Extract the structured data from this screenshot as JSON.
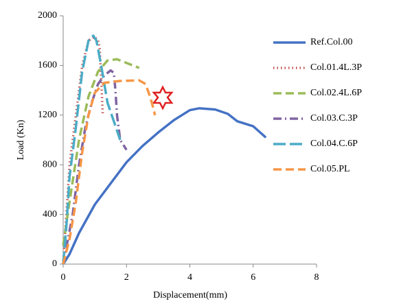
{
  "chart_data": {
    "type": "line",
    "xlabel": "Displacement(mm)",
    "ylabel": "Load (Kn)",
    "xlim": [
      0,
      8
    ],
    "xticks": [
      0,
      2,
      4,
      6,
      8
    ],
    "ylim": [
      0,
      2000
    ],
    "yticks": [
      0,
      400,
      800,
      1200,
      1600,
      2000
    ],
    "grid": false,
    "legend": "right",
    "series": [
      {
        "name": "Ref.Col.00",
        "color": "#4472c4",
        "dash": "solid",
        "x": [
          0,
          0.2,
          0.5,
          1,
          1.5,
          2,
          2.5,
          3,
          3.5,
          4,
          4.3,
          4.8,
          5.2,
          5.5,
          6,
          6.4
        ],
        "values": [
          0,
          80,
          250,
          480,
          650,
          820,
          950,
          1060,
          1160,
          1240,
          1255,
          1245,
          1210,
          1150,
          1110,
          1020
        ]
      },
      {
        "name": "Col.01.4L.3P",
        "color": "#c0504d",
        "dash": "dotted",
        "x": [
          0,
          0.1,
          0.2,
          0.4,
          0.6,
          0.8,
          1,
          1.1,
          1.15,
          1.2,
          1.25
        ],
        "values": [
          0,
          400,
          800,
          1200,
          1600,
          1800,
          1830,
          1800,
          1750,
          1500,
          1200
        ]
      },
      {
        "name": "Col.02.4L.6P",
        "color": "#9bbb59",
        "dash": "dashed",
        "x": [
          0,
          0.2,
          0.5,
          0.8,
          1.1,
          1.4,
          1.7,
          2,
          2.4
        ],
        "values": [
          150,
          500,
          1000,
          1350,
          1550,
          1640,
          1650,
          1620,
          1580
        ]
      },
      {
        "name": "Col.03.C.3P",
        "color": "#8064a2",
        "dash": "dashdot",
        "x": [
          0,
          0.3,
          0.5,
          0.7,
          0.9,
          1.1,
          1.3,
          1.5,
          1.6,
          1.65,
          1.7,
          1.8,
          2
        ],
        "values": [
          0,
          400,
          800,
          1100,
          1300,
          1450,
          1520,
          1560,
          1540,
          1400,
          1200,
          1000,
          920
        ]
      },
      {
        "name": "Col.04.C.6P",
        "color": "#4bacc6",
        "dash": "longdash",
        "x": [
          0,
          0.1,
          0.2,
          0.4,
          0.6,
          0.8,
          0.95,
          1.05,
          1.2,
          1.4,
          1.6,
          1.8
        ],
        "values": [
          0,
          300,
          700,
          1100,
          1550,
          1800,
          1840,
          1800,
          1600,
          1300,
          1150,
          1000
        ]
      },
      {
        "name": "Col.05.PL",
        "color": "#f79646",
        "dash": "dashed",
        "x": [
          0,
          0.2,
          0.4,
          0.6,
          0.8,
          1,
          1.3,
          1.8,
          2.4,
          2.6,
          2.7,
          2.8,
          2.9
        ],
        "values": [
          0,
          200,
          500,
          900,
          1200,
          1380,
          1460,
          1475,
          1480,
          1450,
          1380,
          1300,
          1200
        ]
      }
    ]
  }
}
